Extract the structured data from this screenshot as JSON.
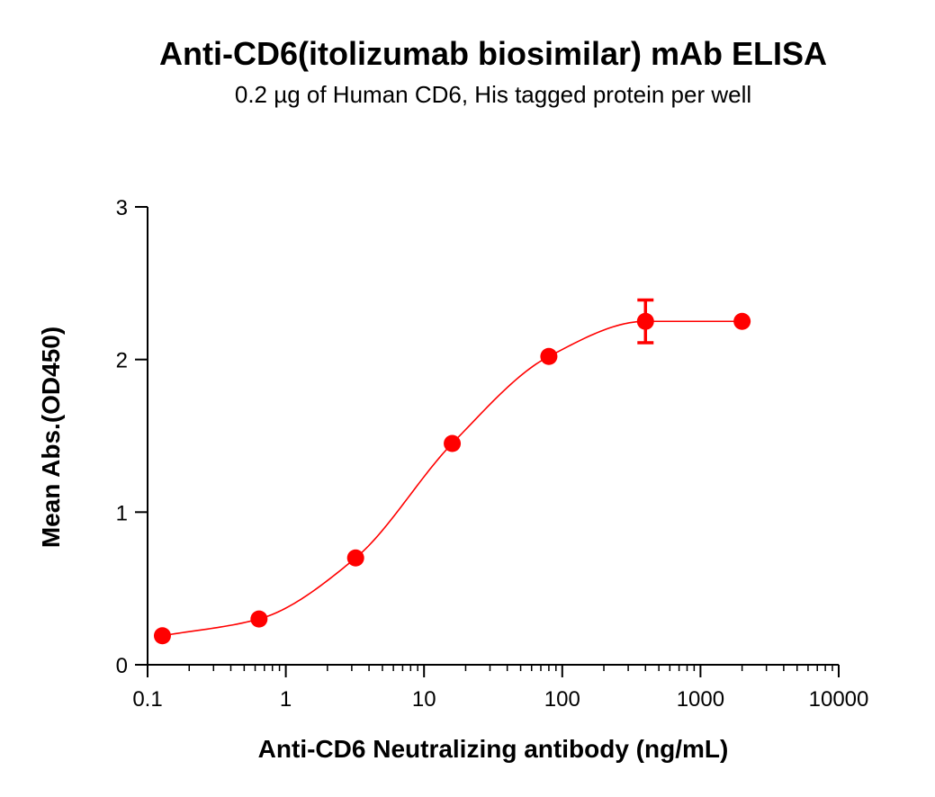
{
  "chart_data": {
    "type": "scatter",
    "title": "Anti-CD6(itolizumab biosimilar) mAb ELISA",
    "subtitle": "0.2 µg of Human CD6, His tagged protein per well",
    "xlabel": "Anti-CD6 Neutralizing antibody (ng/mL)",
    "ylabel": "Mean Abs.(OD450)",
    "x_scale": "log",
    "xlim": [
      0.1,
      10000
    ],
    "ylim": [
      0,
      3
    ],
    "x_ticks": [
      "0.1",
      "1",
      "10",
      "100",
      "1000",
      "10000"
    ],
    "y_ticks": [
      "0",
      "1",
      "2",
      "3"
    ],
    "grid": false,
    "legend": "none",
    "series": [
      {
        "color": "#ff0000",
        "points": [
          {
            "x": 0.128,
            "y": 0.19
          },
          {
            "x": 0.64,
            "y": 0.3
          },
          {
            "x": 3.2,
            "y": 0.7
          },
          {
            "x": 16,
            "y": 1.45
          },
          {
            "x": 80,
            "y": 2.02
          },
          {
            "x": 400,
            "y": 2.25,
            "error": 0.14
          },
          {
            "x": 2000,
            "y": 2.25
          }
        ],
        "fit": "four-parameter logistic curve"
      }
    ]
  }
}
